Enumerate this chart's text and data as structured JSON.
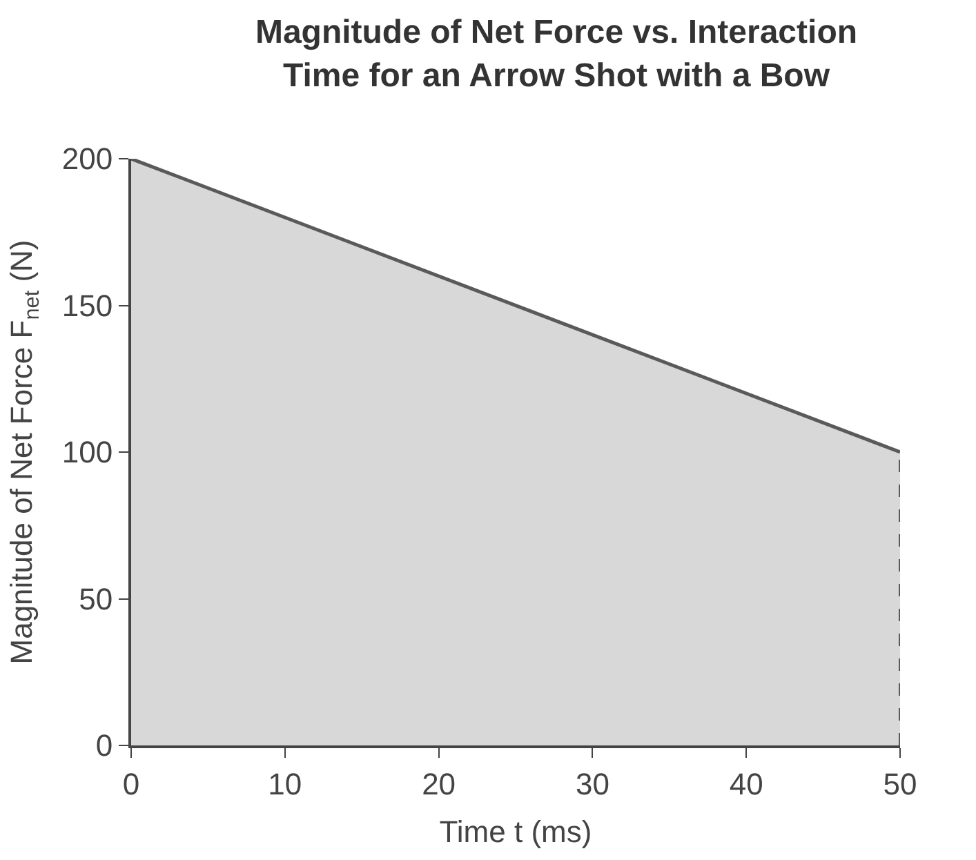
{
  "chart_data": {
    "type": "area",
    "title": "Magnitude of Net Force vs. Interaction\nTime for an Arrow Shot with a Bow",
    "xlabel": "Time t (ms)",
    "ylabel": "Magnitude of Net Force F$_{net}$ (N)",
    "x": [
      0,
      50
    ],
    "series": [
      {
        "color": "#5a5a5a",
        "values": [
          200,
          100
        ]
      }
    ],
    "xlim": [
      0,
      50
    ],
    "ylim": [
      0,
      200
    ],
    "xticks": [
      0,
      10,
      20,
      30,
      40,
      50
    ],
    "yticks": [
      0,
      50,
      100,
      150,
      200
    ],
    "ref_lines": [
      {
        "axis": "x",
        "value": 50,
        "color": "#5a5a5a",
        "line_style": "dashed"
      }
    ]
  }
}
